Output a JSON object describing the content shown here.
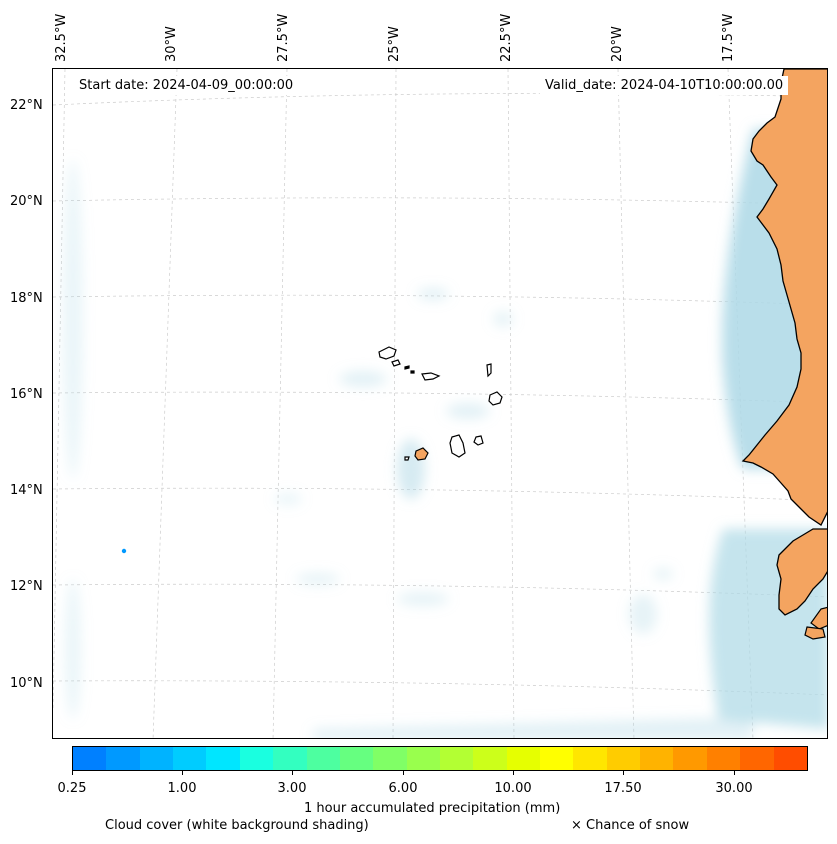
{
  "map": {
    "lon_labels": [
      "32.5°W",
      "30°W",
      "27.5°W",
      "25°W",
      "22.5°W",
      "20°W",
      "17.5°W"
    ],
    "lat_labels": [
      "22°N",
      "20°N",
      "18°N",
      "16°N",
      "14°N",
      "12°N",
      "10°N"
    ],
    "start_date": "Start date: 2024-04-09_00:00:00",
    "valid_date": "Valid_date: 2024-04-10T10:00:00.00",
    "colors": {
      "land": "#f4a460",
      "cloud": "#add8e6",
      "ocean": "#ffffff",
      "grid": "#cccccc",
      "coast": "#000000"
    }
  },
  "colorbar": {
    "ticks": [
      "0.25",
      "1.00",
      "3.00",
      "6.00",
      "10.00",
      "17.50",
      "30.00"
    ],
    "colors": [
      "#0080ff",
      "#0099ff",
      "#00b3ff",
      "#00ccff",
      "#00e6ff",
      "#1affe0",
      "#33ffc0",
      "#4dffa0",
      "#66ff80",
      "#80ff66",
      "#99ff4d",
      "#b3ff33",
      "#ccff1a",
      "#e6ff00",
      "#ffff00",
      "#ffe600",
      "#ffcc00",
      "#ffb300",
      "#ff9900",
      "#ff8000",
      "#ff6600",
      "#ff4d00"
    ],
    "label": "1 hour accumulated precipitation (mm)"
  },
  "legend": {
    "cloud_cover": "Cloud cover (white background shading)",
    "snow": "× Chance of snow"
  }
}
